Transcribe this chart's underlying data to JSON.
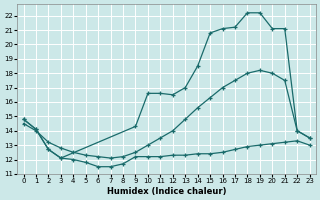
{
  "xlabel": "Humidex (Indice chaleur)",
  "bg_color": "#cce8e8",
  "grid_color": "#ffffff",
  "line_color": "#1a6b6b",
  "xlim": [
    -0.5,
    23.5
  ],
  "ylim": [
    11,
    22.8
  ],
  "yticks": [
    11,
    12,
    13,
    14,
    15,
    16,
    17,
    18,
    19,
    20,
    21,
    22
  ],
  "xticks": [
    0,
    1,
    2,
    3,
    4,
    5,
    6,
    7,
    8,
    9,
    10,
    11,
    12,
    13,
    14,
    15,
    16,
    17,
    18,
    19,
    20,
    21,
    22,
    23
  ],
  "line1_x": [
    0,
    1,
    2,
    3,
    4,
    5,
    6,
    7,
    8,
    9,
    10,
    11,
    12,
    13,
    14,
    15,
    16,
    17,
    18,
    19,
    20,
    21,
    22,
    23
  ],
  "line1_y": [
    14.8,
    14.1,
    12.7,
    12.1,
    12.0,
    11.8,
    11.5,
    11.5,
    11.7,
    12.2,
    12.2,
    12.2,
    12.3,
    12.3,
    12.4,
    12.4,
    12.5,
    12.7,
    12.9,
    13.0,
    13.1,
    13.2,
    13.3,
    13.0
  ],
  "line2_x": [
    0,
    1,
    2,
    3,
    4,
    5,
    6,
    7,
    8,
    9,
    10,
    11,
    12,
    13,
    14,
    15,
    16,
    17,
    18,
    19,
    20,
    21,
    22,
    23
  ],
  "line2_y": [
    14.5,
    14.0,
    13.2,
    12.8,
    12.5,
    12.3,
    12.2,
    12.1,
    12.2,
    12.5,
    13.0,
    13.5,
    14.0,
    14.8,
    15.6,
    16.3,
    17.0,
    17.5,
    18.0,
    18.2,
    18.0,
    17.5,
    14.0,
    13.5
  ],
  "line3_x": [
    0,
    1,
    2,
    3,
    9,
    10,
    11,
    12,
    13,
    14,
    15,
    16,
    17,
    18,
    19,
    20,
    21,
    22,
    23
  ],
  "line3_y": [
    14.8,
    14.1,
    12.7,
    12.1,
    14.3,
    16.6,
    16.6,
    16.5,
    17.0,
    18.5,
    20.8,
    21.1,
    21.2,
    22.2,
    22.2,
    21.1,
    21.1,
    14.0,
    13.5
  ]
}
